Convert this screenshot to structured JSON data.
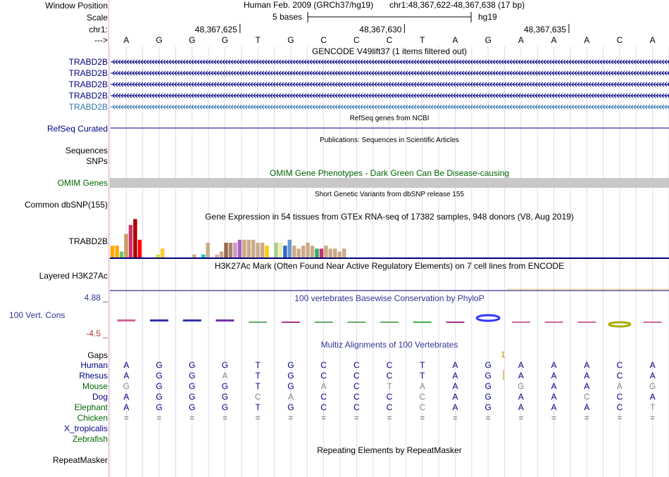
{
  "header": {
    "window_position_label": "Window Position",
    "scale_label": "Scale",
    "chrom_label": "chr1:",
    "strand_label": "--->",
    "assembly_title": "Human Feb. 2009 (GRCh37/hg19)",
    "position_text": "chr1:48,367,622-48,367,638 (17 bp)",
    "scale_text": "5 bases",
    "scale_assembly": "hg19",
    "ticks": [
      "48,367,625",
      "48,367,630",
      "48,367,635"
    ]
  },
  "bases": [
    "A",
    "G",
    "G",
    "G",
    "T",
    "G",
    "C",
    "C",
    "C",
    "T",
    "A",
    "G",
    "A",
    "A",
    "A",
    "C",
    "A"
  ],
  "gencode": {
    "title": "GENCODE V49lift37 (1 items filtered out)",
    "transcripts": [
      "TRABD2B",
      "TRABD2B",
      "TRABD2B",
      "TRABD2B",
      "TRABD2B"
    ]
  },
  "refseq": {
    "title": "RefSeq genes from NCBI",
    "label": "RefSeq Curated"
  },
  "publications": {
    "title": "Publications: Sequences in Scientific Articles",
    "label1": "Sequences",
    "label2": "SNPs"
  },
  "omim": {
    "title": "OMIM Gene Phenotypes - Dark Green Can Be Disease-causing",
    "label": "OMIM Genes"
  },
  "dbsnp": {
    "title": "Short Genetic Variants from dbSNP release 155",
    "label": "Common dbSNP(155)"
  },
  "gtex": {
    "title": "Gene Expression in 54 tissues from GTEx RNA-seq of 17382 samples, 948 donors (V8, Aug 2019)",
    "label": "TRABD2B",
    "values": [
      4,
      4,
      2,
      8,
      11,
      13,
      6,
      0,
      0,
      0,
      1,
      3,
      0,
      0,
      0,
      0,
      0,
      0,
      1,
      0,
      1,
      5,
      0,
      1,
      2,
      5,
      5,
      5,
      6,
      6,
      6,
      6,
      5,
      5,
      4,
      0,
      5,
      5,
      4,
      6,
      4,
      3,
      4,
      5,
      4,
      3,
      3,
      4,
      3,
      3,
      2,
      3,
      0,
      0
    ],
    "colors": [
      "#ffaa00",
      "#ffaa00",
      "#66cc66",
      "#cc9966",
      "#cc3366",
      "#aa0000",
      "#ff0000",
      "#ccaa88",
      "#eeee00",
      "#ccaa88",
      "#dddd33",
      "#ffcc33",
      "#ccaa88",
      "#ccaa88",
      "#ccaa88",
      "#ccaa88",
      "#ccaa88",
      "#ccaa88",
      "#ccaa88",
      "#ccaa88",
      "#00cccc",
      "#ccaa88",
      "#eecccc",
      "#ddaaaa",
      "#ccaa88",
      "#996655",
      "#aa8866",
      "#cc99cc",
      "#aa66bb",
      "#ccaa88",
      "#ccaa88",
      "#ccaa88",
      "#ccaa88",
      "#ccaa88",
      "#ffcc00",
      "#ccaa88",
      "#aacc88",
      "#eeeeaa",
      "#3366cc",
      "#6699cc",
      "#ccaa88",
      "#ccaa88",
      "#ccaa88",
      "#ccaa88",
      "#ccaa88",
      "#33aa66",
      "#cc3366",
      "#ccaa88",
      "#ccaa88",
      "#ccaa88",
      "#ccaa88",
      "#ccaa88",
      "#ccaa88",
      "#ccaa88"
    ]
  },
  "h3k27ac": {
    "title": "H3K27Ac Mark (Often Found Near Active Regulatory Elements) on 7 cell lines from ENCODE",
    "label": "Layered H3K27Ac"
  },
  "conservation": {
    "title": "100 vertebrates Basewise Conservation by PhyloP",
    "label": "100 Vert. Cons",
    "ymax": "4.88 _",
    "ymin": "-4.5 _",
    "logo_colors": [
      "#cc6699",
      "#3333aa",
      "#3333aa",
      "#7733aa",
      "#66aa66",
      "#aa3388",
      "#66aa66",
      "#66aa66",
      "#66aa66",
      "#44aa44",
      "#aa3388",
      "#3333ff",
      "#cc6699",
      "#cc6699",
      "#cc6699",
      "#aaaa00",
      "#cc6699"
    ]
  },
  "multiz": {
    "title": "Multiz Alignments of 100 Vertebrates",
    "gaps_label": "Gaps",
    "gap_count": "1",
    "colors": {
      "blue": "#000088",
      "green": "#006600",
      "grey": "#888888",
      "gaps": "#cc8800",
      "cons_red": "#aa3333",
      "cons_blue": "#333399"
    },
    "species": [
      {
        "name": "Human",
        "color": "blue",
        "bases": [
          "A",
          "G",
          "G",
          "G",
          "T",
          "G",
          "C",
          "C",
          "C",
          "T",
          "A",
          "G",
          "A",
          "A",
          "A",
          "C",
          "A"
        ],
        "grey": []
      },
      {
        "name": "Rhesus",
        "color": "blue",
        "bases": [
          "A",
          "G",
          "G",
          "A",
          "T",
          "G",
          "C",
          "C",
          "C",
          "T",
          "A",
          "G",
          "A",
          "A",
          "A",
          "C",
          "A"
        ],
        "grey": [
          3
        ]
      },
      {
        "name": "Mouse",
        "color": "green",
        "bases": [
          "G",
          "G",
          "G",
          "G",
          "T",
          "G",
          "A",
          "C",
          "T",
          "A",
          "A",
          "G",
          "G",
          "A",
          "A",
          "A",
          "G"
        ],
        "grey": [
          0,
          6,
          8,
          9,
          12,
          15,
          16
        ]
      },
      {
        "name": "Dog",
        "color": "blue",
        "bases": [
          "A",
          "G",
          "G",
          "G",
          "C",
          "A",
          "C",
          "C",
          "C",
          "C",
          "A",
          "G",
          "A",
          "A",
          "C",
          "C",
          "A"
        ],
        "grey": [
          4,
          5,
          9,
          14
        ]
      },
      {
        "name": "Elephant",
        "color": "green",
        "bases": [
          "A",
          "G",
          "G",
          "G",
          "T",
          "G",
          "C",
          "C",
          "C",
          "C",
          "A",
          "G",
          "A",
          "A",
          "A",
          "C",
          "T"
        ],
        "grey": [
          9,
          16
        ]
      },
      {
        "name": "Chicken",
        "color": "green",
        "bases": [
          "=",
          "=",
          "=",
          "=",
          "=",
          "=",
          "=",
          "=",
          "=",
          "=",
          "=",
          "=",
          "=",
          "=",
          "=",
          "=",
          "="
        ],
        "grey": []
      },
      {
        "name": "X_tropicalis",
        "color": "blue",
        "bases": [],
        "grey": []
      },
      {
        "name": "Zebrafish",
        "color": "green",
        "bases": [],
        "grey": []
      }
    ]
  },
  "repeatmasker": {
    "title": "Repeating Elements by RepeatMasker",
    "label": "RepeatMasker"
  }
}
